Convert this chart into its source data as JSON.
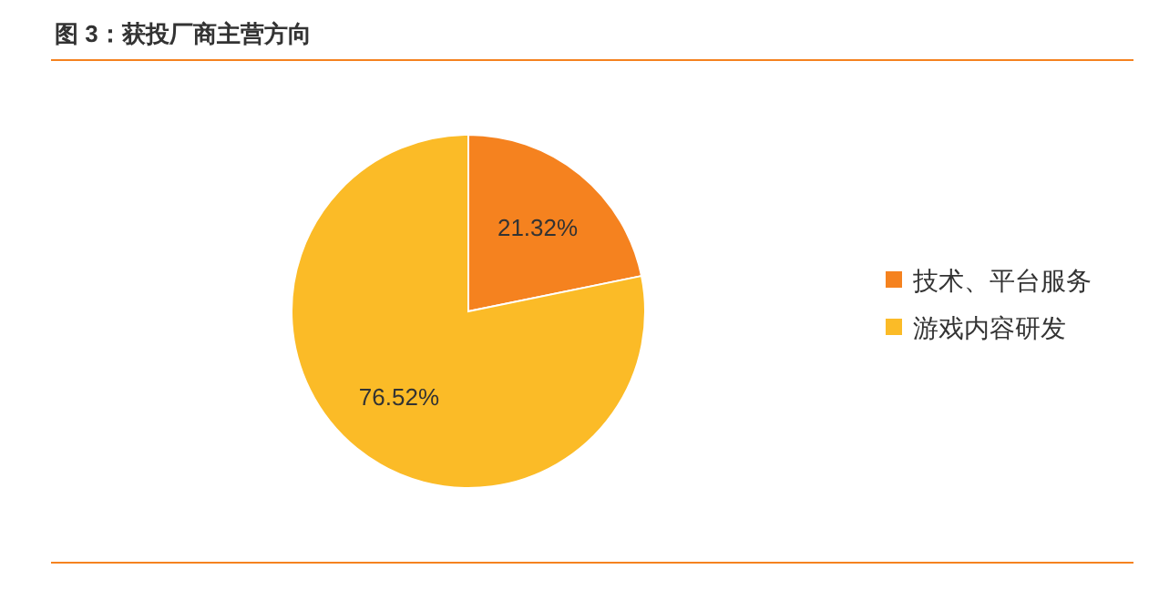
{
  "chart_data": {
    "type": "pie",
    "title": "图 3：获投厂商主营方向",
    "categories": [
      "技术、平台服务",
      "游戏内容研发"
    ],
    "values": [
      21.32,
      76.52
    ],
    "value_labels": [
      "21.32%",
      "76.52%"
    ],
    "colors": [
      "#f5821f",
      "#fbbb27"
    ],
    "legend": "right"
  }
}
